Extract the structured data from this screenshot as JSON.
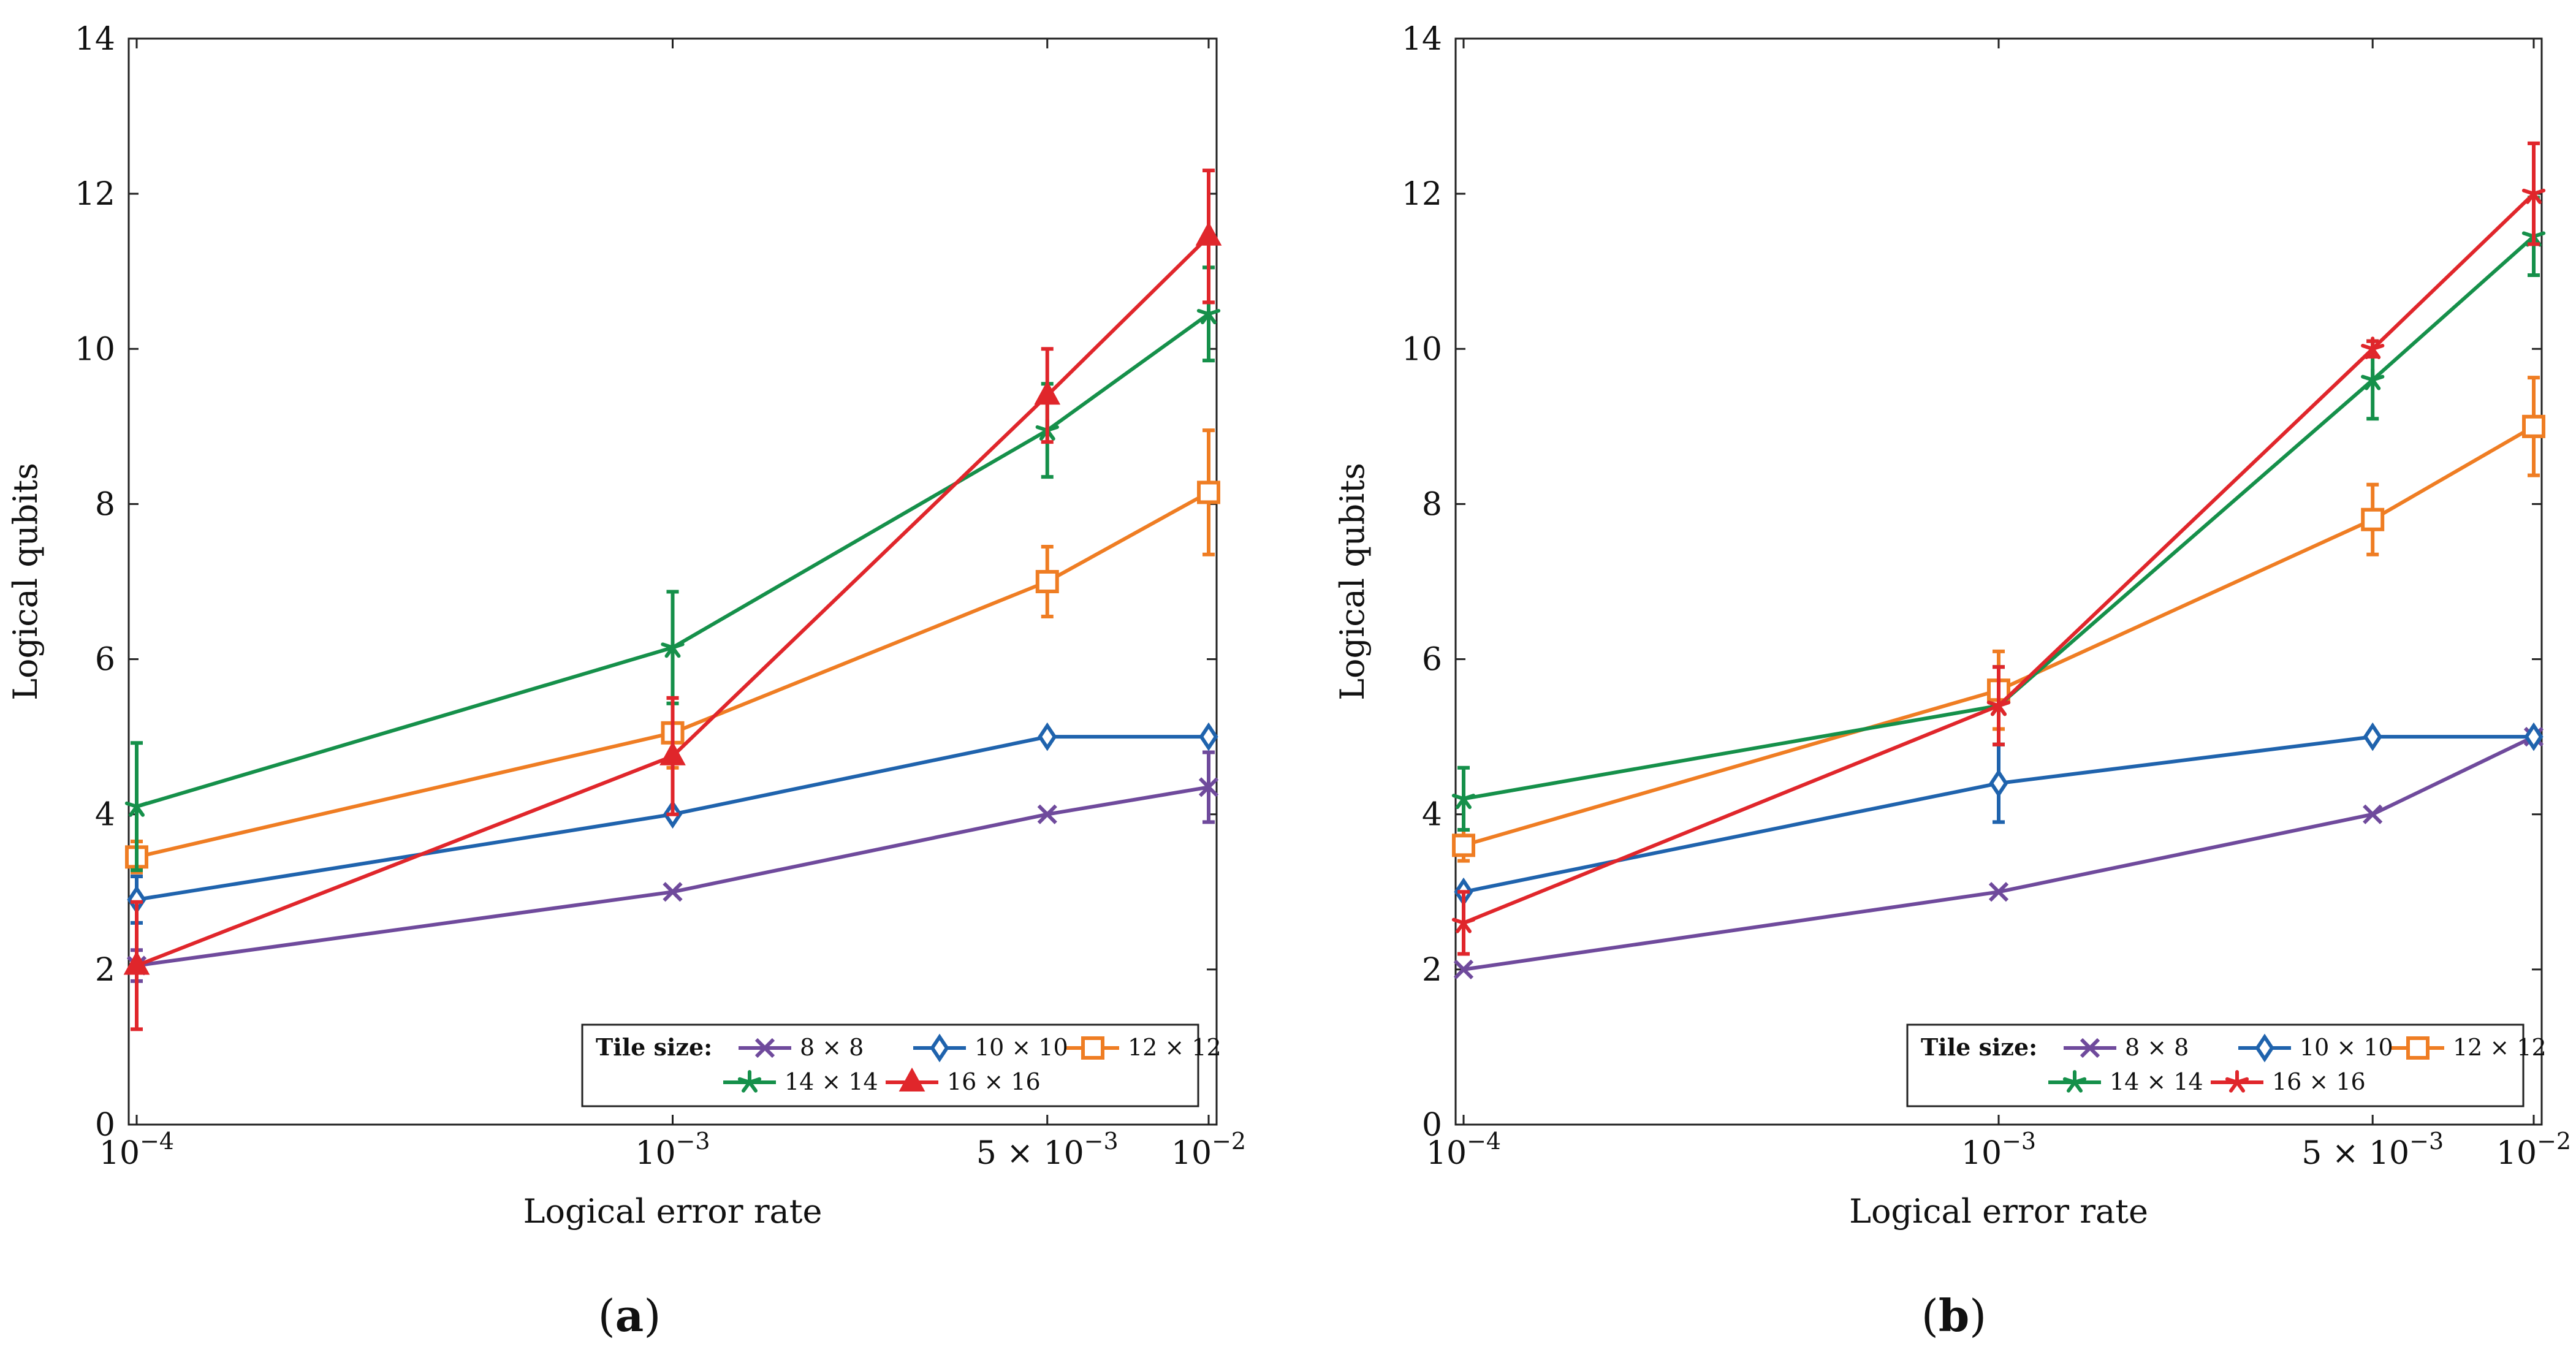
{
  "figures": [
    {
      "caption_letter": "a"
    },
    {
      "caption_letter": "b"
    }
  ],
  "chart_data": [
    {
      "type": "line",
      "panel": "a",
      "xscale": "log",
      "xlim": [
        0.0001,
        0.01
      ],
      "ylim": [
        0,
        14
      ],
      "x_ticks": [
        {
          "value": 0.0001,
          "mantissa": "",
          "base": "10",
          "exp": "−4"
        },
        {
          "value": 0.001,
          "mantissa": "",
          "base": "10",
          "exp": "−3"
        },
        {
          "value": 0.005,
          "mantissa": "5 × ",
          "base": "10",
          "exp": "−3"
        },
        {
          "value": 0.01,
          "mantissa": "",
          "base": "10",
          "exp": "−2"
        }
      ],
      "y_ticks": [
        "0",
        "2",
        "4",
        "6",
        "8",
        "10",
        "12",
        "14"
      ],
      "xlabel": "Logical error rate",
      "ylabel": "Logical qubits",
      "legend_title": "Tile size:",
      "legend_position": "bottom-right",
      "x": [
        0.0001,
        0.001,
        0.005,
        0.01
      ],
      "series": [
        {
          "name": "8 × 8",
          "color": "#6f4a9c",
          "marker": "x",
          "values": [
            2.05,
            3.0,
            4.0,
            4.35
          ],
          "errors": [
            0.2,
            0,
            0,
            0.45
          ]
        },
        {
          "name": "10 × 10",
          "color": "#1f63ad",
          "marker": "diamond",
          "values": [
            2.9,
            4.0,
            5.0,
            5.0
          ],
          "errors": [
            0.3,
            0,
            0,
            0
          ]
        },
        {
          "name": "12 × 12",
          "color": "#ef7d23",
          "marker": "square",
          "values": [
            3.45,
            5.05,
            7.0,
            8.15
          ],
          "errors": [
            0.2,
            0.45,
            0.45,
            0.8
          ]
        },
        {
          "name": "14 × 14",
          "color": "#15904a",
          "marker": "star",
          "values": [
            4.1,
            6.15,
            8.95,
            10.45
          ],
          "errors": [
            0.82,
            0.72,
            0.6,
            0.6
          ]
        },
        {
          "name": "16 × 16",
          "color": "#e0262b",
          "marker": "triangle",
          "values": [
            2.05,
            4.75,
            9.4,
            11.45
          ],
          "errors": [
            0.82,
            0.75,
            0.6,
            0.85
          ]
        }
      ]
    },
    {
      "type": "line",
      "panel": "b",
      "xscale": "log",
      "xlim": [
        0.0001,
        0.01
      ],
      "ylim": [
        0,
        14
      ],
      "x_ticks": [
        {
          "value": 0.0001,
          "mantissa": "",
          "base": "10",
          "exp": "−4"
        },
        {
          "value": 0.001,
          "mantissa": "",
          "base": "10",
          "exp": "−3"
        },
        {
          "value": 0.005,
          "mantissa": "5 × ",
          "base": "10",
          "exp": "−3"
        },
        {
          "value": 0.01,
          "mantissa": "",
          "base": "10",
          "exp": "−2"
        }
      ],
      "y_ticks": [
        "0",
        "2",
        "4",
        "6",
        "8",
        "10",
        "12",
        "14"
      ],
      "xlabel": "Logical error rate",
      "ylabel": "Logical qubits",
      "legend_title": "Tile size:",
      "legend_position": "bottom-right",
      "x": [
        0.0001,
        0.001,
        0.005,
        0.01
      ],
      "series": [
        {
          "name": "8 × 8",
          "color": "#6f4a9c",
          "marker": "x",
          "values": [
            2.0,
            3.0,
            4.0,
            5.0
          ],
          "errors": [
            0,
            0,
            0,
            0
          ]
        },
        {
          "name": "10 × 10",
          "color": "#1f63ad",
          "marker": "diamond",
          "values": [
            3.0,
            4.4,
            5.0,
            5.0
          ],
          "errors": [
            0,
            0.5,
            0,
            0
          ]
        },
        {
          "name": "12 × 12",
          "color": "#ef7d23",
          "marker": "square",
          "values": [
            3.6,
            5.6,
            7.8,
            9.0
          ],
          "errors": [
            0.2,
            0.5,
            0.45,
            0.63
          ]
        },
        {
          "name": "14 × 14",
          "color": "#15904a",
          "marker": "star",
          "values": [
            4.2,
            5.4,
            9.6,
            11.45
          ],
          "errors": [
            0.4,
            0.5,
            0.5,
            0.5
          ]
        },
        {
          "name": "16 × 16",
          "color": "#e0262b",
          "marker": "star",
          "values": [
            2.6,
            5.4,
            10.0,
            12.0
          ],
          "errors": [
            0.4,
            0.5,
            0.1,
            0.65
          ]
        }
      ]
    }
  ]
}
